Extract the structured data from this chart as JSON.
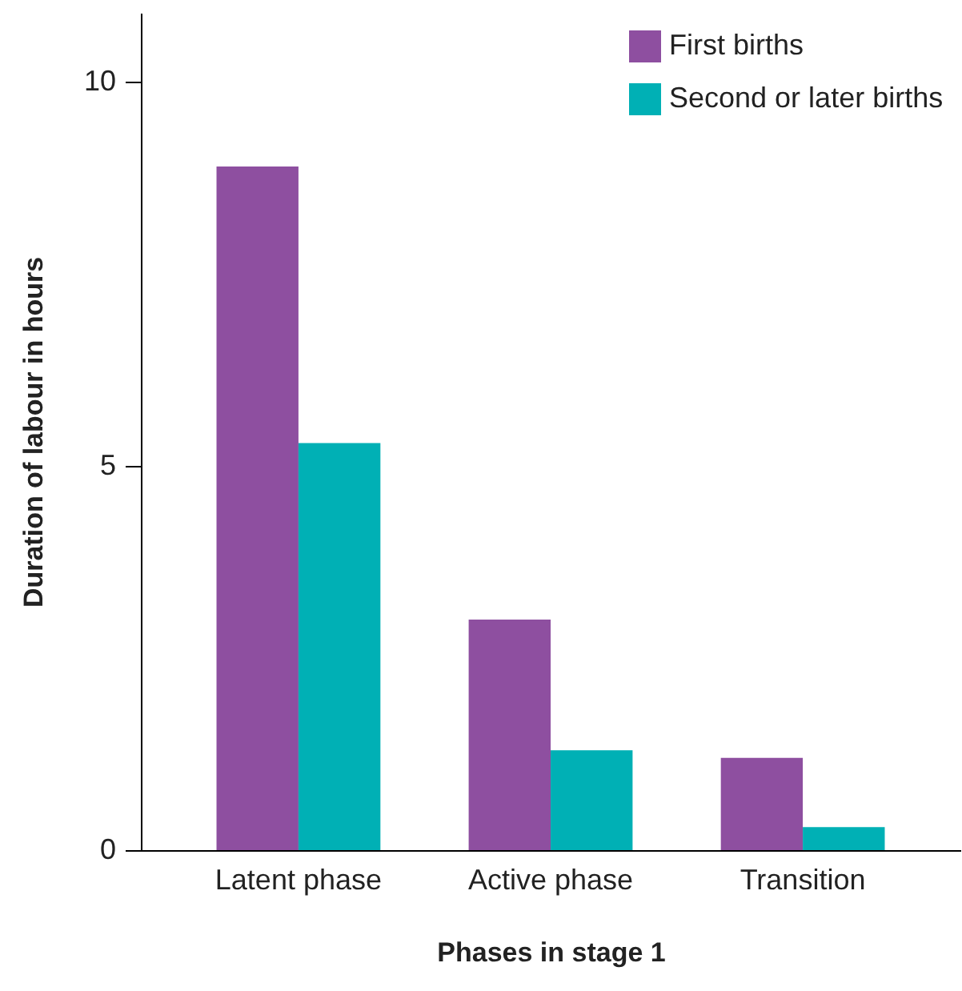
{
  "chart_data": {
    "type": "bar",
    "xlabel": "Phases in stage 1",
    "ylabel": "Duration of labour in hours",
    "categories": [
      "Latent phase",
      "Active phase",
      "Transition"
    ],
    "series": [
      {
        "name": "First births",
        "color": "#8e4fa0",
        "values": [
          8.9,
          3.0,
          1.2
        ]
      },
      {
        "name": "Second or later births",
        "color": "#00b0b5",
        "values": [
          5.3,
          1.3,
          0.3
        ]
      }
    ],
    "ylim": [
      0,
      10.9
    ],
    "yticks": [
      0,
      5,
      10
    ],
    "grid": false,
    "legend": "top right"
  }
}
